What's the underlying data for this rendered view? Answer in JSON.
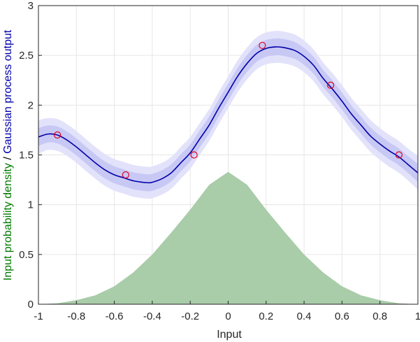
{
  "chart_data": {
    "type": "line",
    "xlabel": "Input",
    "ylabel_parts": [
      {
        "text": "Input probability density",
        "color": "#007a00"
      },
      {
        "text": " / ",
        "color": "#000000"
      },
      {
        "text": "Gaussian process output",
        "color": "#0000aa"
      }
    ],
    "xlim": [
      -1,
      1
    ],
    "ylim": [
      0,
      3
    ],
    "xticks": [
      -1,
      -0.8,
      -0.6,
      -0.4,
      -0.2,
      0,
      0.2,
      0.4,
      0.6,
      0.8,
      1
    ],
    "xtick_labels": [
      "-1",
      "-0.8",
      "-0.6",
      "-0.4",
      "-0.2",
      "0",
      "0.2",
      "0.4",
      "0.6",
      "0.8",
      "1"
    ],
    "yticks": [
      0,
      0.5,
      1,
      1.5,
      2,
      2.5,
      3
    ],
    "ytick_labels": [
      "0",
      "0.5",
      "1",
      "1.5",
      "2",
      "2.5",
      "3"
    ],
    "grid": true,
    "density": {
      "description_type": "area",
      "color": "#a9cca9",
      "x": [
        -1,
        -0.9,
        -0.8,
        -0.7,
        -0.6,
        -0.5,
        -0.4,
        -0.3,
        -0.2,
        -0.1,
        0,
        0.1,
        0.2,
        0.3,
        0.4,
        0.5,
        0.6,
        0.7,
        0.8,
        0.9,
        1
      ],
      "y": [
        0.0,
        0.01,
        0.04,
        0.09,
        0.18,
        0.32,
        0.5,
        0.72,
        0.95,
        1.2,
        1.33,
        1.2,
        0.95,
        0.72,
        0.5,
        0.32,
        0.18,
        0.09,
        0.04,
        0.01,
        0.0
      ]
    },
    "gp_mean": {
      "color": "#0000aa",
      "x": [
        -1,
        -0.95,
        -0.9,
        -0.85,
        -0.8,
        -0.75,
        -0.7,
        -0.65,
        -0.6,
        -0.55,
        -0.5,
        -0.45,
        -0.42,
        -0.4,
        -0.35,
        -0.3,
        -0.25,
        -0.2,
        -0.15,
        -0.1,
        -0.05,
        0,
        0.05,
        0.1,
        0.15,
        0.2,
        0.25,
        0.29,
        0.35,
        0.4,
        0.45,
        0.5,
        0.55,
        0.6,
        0.65,
        0.7,
        0.75,
        0.8,
        0.85,
        0.9,
        0.95,
        1
      ],
      "y": [
        1.68,
        1.71,
        1.7,
        1.65,
        1.58,
        1.5,
        1.42,
        1.35,
        1.3,
        1.27,
        1.24,
        1.225,
        1.22,
        1.225,
        1.26,
        1.32,
        1.42,
        1.52,
        1.66,
        1.8,
        1.97,
        2.13,
        2.29,
        2.42,
        2.52,
        2.57,
        2.585,
        2.58,
        2.55,
        2.49,
        2.4,
        2.27,
        2.16,
        2.04,
        1.91,
        1.8,
        1.69,
        1.61,
        1.54,
        1.48,
        1.4,
        1.32
      ]
    },
    "bands": [
      {
        "name": "",
        "color": "#e2e2fb",
        "halfwidth": [
          0.17,
          0.16,
          0.16,
          0.16,
          0.16,
          0.16,
          0.16,
          0.16,
          0.16,
          0.16,
          0.16,
          0.16,
          0.16,
          0.16,
          0.16,
          0.16,
          0.16,
          0.16,
          0.16,
          0.16,
          0.16,
          0.16,
          0.16,
          0.16,
          0.16,
          0.16,
          0.16,
          0.16,
          0.16,
          0.16,
          0.16,
          0.16,
          0.16,
          0.16,
          0.16,
          0.16,
          0.16,
          0.16,
          0.16,
          0.16,
          0.16,
          0.17
        ]
      },
      {
        "name": "",
        "color": "#c8c8f5",
        "halfwidth": [
          0.09,
          0.085,
          0.085,
          0.085,
          0.085,
          0.085,
          0.085,
          0.085,
          0.085,
          0.085,
          0.085,
          0.085,
          0.085,
          0.085,
          0.085,
          0.085,
          0.085,
          0.085,
          0.085,
          0.085,
          0.085,
          0.085,
          0.085,
          0.085,
          0.085,
          0.085,
          0.085,
          0.085,
          0.085,
          0.085,
          0.085,
          0.085,
          0.085,
          0.085,
          0.085,
          0.085,
          0.085,
          0.085,
          0.085,
          0.085,
          0.085,
          0.09
        ]
      }
    ],
    "observations": {
      "color": "#e0001c",
      "points": [
        {
          "x": -0.9,
          "y": 1.7
        },
        {
          "x": -0.54,
          "y": 1.3
        },
        {
          "x": -0.18,
          "y": 1.5
        },
        {
          "x": 0.18,
          "y": 2.6
        },
        {
          "x": 0.54,
          "y": 2.2
        },
        {
          "x": 0.9,
          "y": 1.5
        }
      ]
    }
  }
}
